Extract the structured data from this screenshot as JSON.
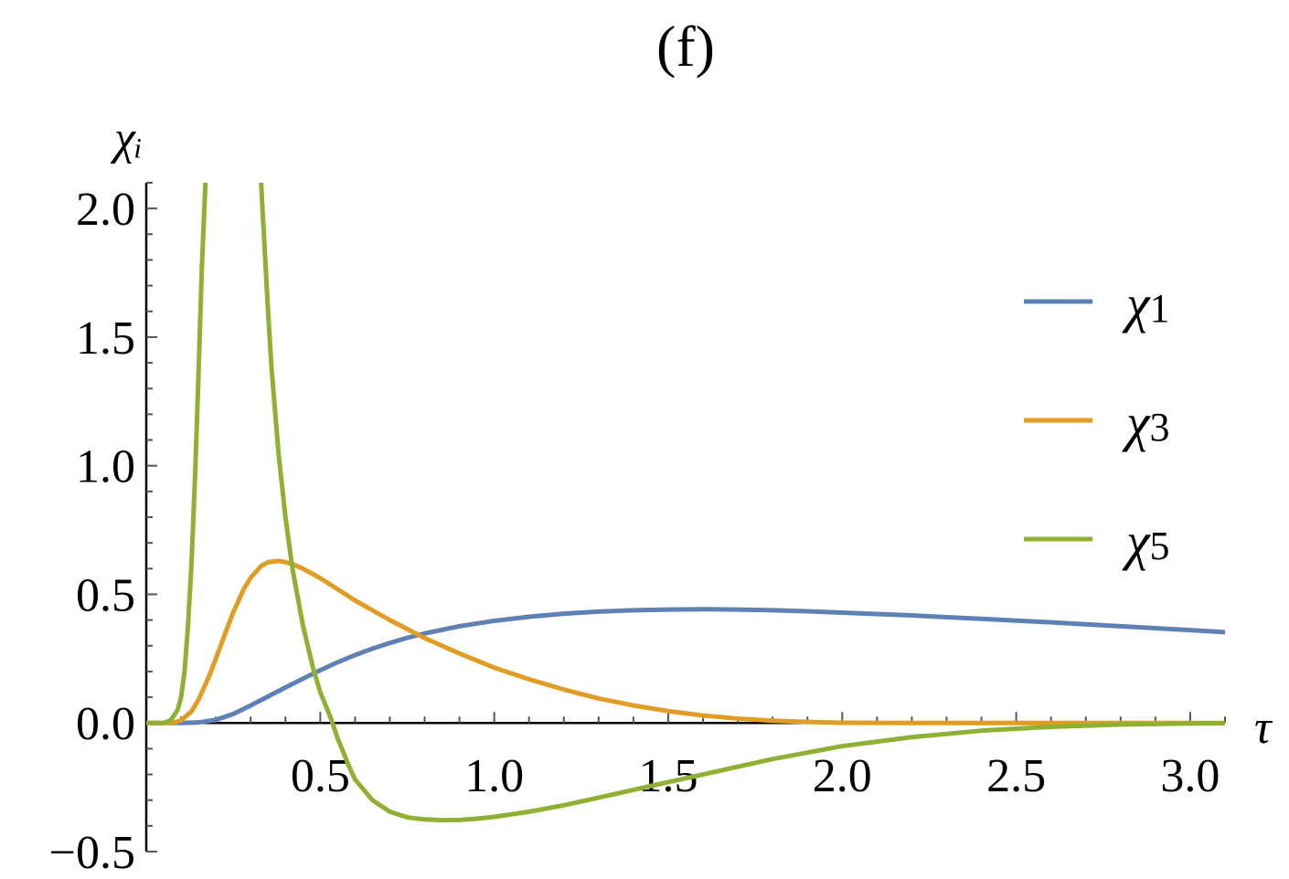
{
  "chart_data": {
    "type": "line",
    "title": "(f)",
    "xlabel": "τ",
    "ylabel": "χᵢ",
    "xlim": [
      0,
      3.1
    ],
    "ylim": [
      -0.5,
      2.1
    ],
    "xticks": [
      0.5,
      1.0,
      1.5,
      2.0,
      2.5,
      3.0
    ],
    "xtick_labels": [
      "0.5",
      "1.0",
      "1.5",
      "2.0",
      "2.5",
      "3.0"
    ],
    "yticks": [
      -0.5,
      0.0,
      0.5,
      1.0,
      1.5,
      2.0
    ],
    "ytick_labels": [
      "−0.5",
      "0.0",
      "0.5",
      "1.0",
      "1.5",
      "2.0"
    ],
    "legend_position": "right",
    "grid": false,
    "series": [
      {
        "name": "χ1",
        "color": "#5e81b5",
        "x": [
          0,
          0.05,
          0.1,
          0.15,
          0.2,
          0.25,
          0.3,
          0.35,
          0.4,
          0.45,
          0.5,
          0.55,
          0.6,
          0.65,
          0.7,
          0.75,
          0.8,
          0.9,
          1.0,
          1.1,
          1.2,
          1.3,
          1.4,
          1.5,
          1.6,
          1.7,
          1.8,
          1.9,
          2.0,
          2.2,
          2.4,
          2.6,
          2.8,
          3.0,
          3.1
        ],
        "y": [
          0,
          0,
          0,
          0.002,
          0.012,
          0.035,
          0.068,
          0.103,
          0.138,
          0.172,
          0.205,
          0.236,
          0.264,
          0.289,
          0.311,
          0.331,
          0.348,
          0.376,
          0.397,
          0.413,
          0.425,
          0.433,
          0.438,
          0.441,
          0.442,
          0.441,
          0.438,
          0.434,
          0.429,
          0.418,
          0.405,
          0.391,
          0.376,
          0.361,
          0.353
        ]
      },
      {
        "name": "χ3",
        "color": "#e19c24",
        "x": [
          0,
          0.05,
          0.08,
          0.1,
          0.13,
          0.15,
          0.18,
          0.2,
          0.23,
          0.25,
          0.28,
          0.3,
          0.33,
          0.35,
          0.38,
          0.4,
          0.42,
          0.45,
          0.48,
          0.5,
          0.55,
          0.6,
          0.7,
          0.8,
          0.9,
          1.0,
          1.1,
          1.2,
          1.3,
          1.4,
          1.5,
          1.6,
          1.7,
          1.8,
          1.9,
          2.0,
          2.2,
          2.4,
          2.6,
          3.1
        ],
        "y": [
          0,
          0,
          0.002,
          0.01,
          0.045,
          0.09,
          0.18,
          0.25,
          0.36,
          0.43,
          0.52,
          0.565,
          0.61,
          0.625,
          0.63,
          0.625,
          0.618,
          0.6,
          0.578,
          0.563,
          0.52,
          0.476,
          0.4,
          0.33,
          0.27,
          0.215,
          0.17,
          0.13,
          0.095,
          0.068,
          0.046,
          0.029,
          0.017,
          0.009,
          0.004,
          0.001,
          0,
          0,
          0,
          0
        ]
      },
      {
        "name": "χ5",
        "color": "#8fb032",
        "x": [
          0,
          0.05,
          0.07,
          0.09,
          0.1,
          0.11,
          0.12,
          0.13,
          0.14,
          0.15,
          0.16,
          0.17,
          null,
          0.33,
          0.34,
          0.35,
          0.36,
          0.38,
          0.4,
          0.42,
          0.45,
          0.48,
          0.5,
          0.53,
          0.55,
          0.58,
          0.6,
          0.65,
          0.7,
          0.75,
          0.8,
          0.85,
          0.9,
          0.95,
          1.0,
          1.1,
          1.2,
          1.3,
          1.4,
          1.5,
          1.6,
          1.8,
          2.0,
          2.2,
          2.4,
          2.6,
          2.8,
          3.0,
          3.1
        ],
        "y": [
          0,
          0,
          0.01,
          0.05,
          0.1,
          0.2,
          0.38,
          0.62,
          0.95,
          1.35,
          1.78,
          2.1,
          null,
          2.1,
          1.85,
          1.6,
          1.38,
          1.05,
          0.8,
          0.6,
          0.38,
          0.21,
          0.12,
          0.02,
          -0.06,
          -0.16,
          -0.22,
          -0.3,
          -0.345,
          -0.367,
          -0.375,
          -0.378,
          -0.377,
          -0.372,
          -0.365,
          -0.345,
          -0.32,
          -0.29,
          -0.26,
          -0.23,
          -0.2,
          -0.14,
          -0.09,
          -0.055,
          -0.03,
          -0.015,
          -0.006,
          -0.002,
          -0.001
        ]
      }
    ]
  }
}
